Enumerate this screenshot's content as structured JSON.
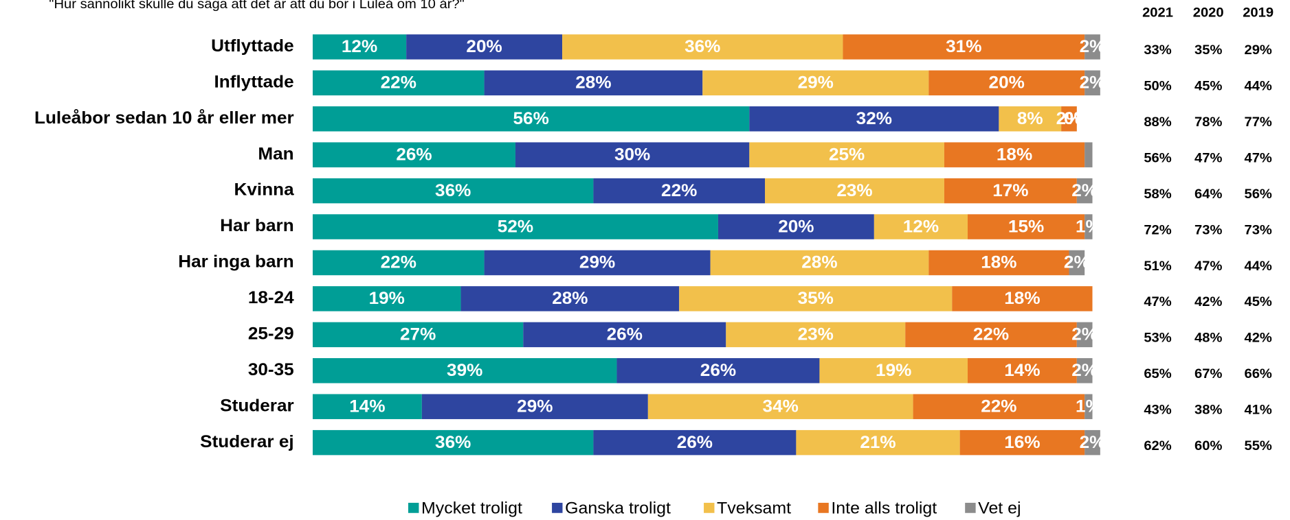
{
  "chart_data": {
    "type": "stacked-barh",
    "title": "\"Hur sannolikt skulle du säga att det är att du bor i Luleå om 10 år?\"",
    "categories": [
      "Utflyttade",
      "Inflyttade",
      "Luleåbor sedan 10 år eller mer",
      "Man",
      "Kvinna",
      "Har barn",
      "Har inga barn",
      "18-24",
      "25-29",
      "30-35",
      "Studerar",
      "Studerar ej"
    ],
    "series": [
      {
        "name": "Mycket troligt",
        "color": "#009e96",
        "values": [
          12,
          22,
          56,
          26,
          36,
          52,
          22,
          19,
          27,
          39,
          14,
          36
        ],
        "value_labels": [
          "12%",
          "22%",
          "56%",
          "26%",
          "36%",
          "52%",
          "22%",
          "19%",
          "27%",
          "39%",
          "14%",
          "36%"
        ]
      },
      {
        "name": "Ganska troligt",
        "color": "#2e45a0",
        "values": [
          20,
          28,
          32,
          30,
          22,
          20,
          29,
          28,
          26,
          26,
          29,
          26
        ],
        "value_labels": [
          "20%",
          "28%",
          "32%",
          "30%",
          "22%",
          "20%",
          "29%",
          "28%",
          "26%",
          "26%",
          "29%",
          "26%"
        ]
      },
      {
        "name": "Tveksamt",
        "color": "#f2c04b",
        "values": [
          36,
          29,
          8,
          25,
          23,
          12,
          28,
          35,
          23,
          19,
          34,
          21
        ],
        "value_labels": [
          "36%",
          "29%",
          "8%",
          "25%",
          "23%",
          "12%",
          "28%",
          "35%",
          "23%",
          "19%",
          "34%",
          "21%"
        ]
      },
      {
        "name": "Inte alls troligt",
        "color": "#e87722",
        "values": [
          31,
          20,
          2,
          18,
          17,
          15,
          18,
          18,
          22,
          14,
          22,
          16
        ],
        "value_labels": [
          "31%",
          "20%",
          "2%",
          "18%",
          "17%",
          "15%",
          "18%",
          "18%",
          "22%",
          "14%",
          "22%",
          "16%"
        ]
      },
      {
        "name": "Vet ej",
        "color": "#8c8c8c",
        "values": [
          2,
          2,
          0,
          1,
          2,
          1,
          2,
          0,
          2,
          2,
          1,
          2
        ],
        "value_labels": [
          "2%",
          "2%",
          "0%",
          null,
          "2%",
          "1%",
          "2%",
          null,
          "2%",
          "2%",
          "1%",
          "2%"
        ]
      }
    ],
    "legend": "bottom",
    "side_table": {
      "columns": [
        "2021",
        "2020",
        "2019"
      ],
      "rows": [
        [
          "33%",
          "35%",
          "29%"
        ],
        [
          "50%",
          "45%",
          "44%"
        ],
        [
          "88%",
          "78%",
          "77%"
        ],
        [
          "56%",
          "47%",
          "47%"
        ],
        [
          "58%",
          "64%",
          "56%"
        ],
        [
          "72%",
          "73%",
          "73%"
        ],
        [
          "51%",
          "47%",
          "44%"
        ],
        [
          "47%",
          "42%",
          "45%"
        ],
        [
          "53%",
          "48%",
          "42%"
        ],
        [
          "65%",
          "67%",
          "66%"
        ],
        [
          "43%",
          "38%",
          "41%"
        ],
        [
          "62%",
          "60%",
          "55%"
        ]
      ]
    }
  }
}
